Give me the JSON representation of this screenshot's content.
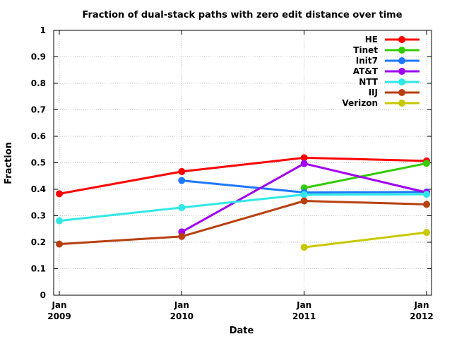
{
  "chart_data": {
    "type": "line",
    "title": "Fraction of dual-stack paths with zero edit distance over time",
    "xlabel": "Date",
    "ylabel": "Fraction",
    "x_ticks": [
      {
        "line1": "Jan",
        "line2": "2009",
        "x": "2009-01"
      },
      {
        "line1": "Jan",
        "line2": "2010",
        "x": "2010-01"
      },
      {
        "line1": "Jan",
        "line2": "2011",
        "x": "2011-01"
      },
      {
        "line1": "Jan",
        "line2": "2012",
        "x": "2012-01"
      }
    ],
    "xlim": [
      "2009-01",
      "2012-01"
    ],
    "ylim": [
      0,
      1
    ],
    "y_ticks": [
      "0",
      "0.1",
      "0.2",
      "0.3",
      "0.4",
      "0.5",
      "0.6",
      "0.7",
      "0.8",
      "0.9",
      "1"
    ],
    "grid": true,
    "legend_position": "top-right",
    "series": [
      {
        "name": "HE",
        "color": "#ff0000",
        "points": [
          {
            "x": "2009-01",
            "y": 0.383
          },
          {
            "x": "2010-01",
            "y": 0.467
          },
          {
            "x": "2011-01",
            "y": 0.519
          },
          {
            "x": "2012-01",
            "y": 0.507
          }
        ]
      },
      {
        "name": "Tinet",
        "color": "#33cc00",
        "points": [
          {
            "x": "2011-01",
            "y": 0.405
          },
          {
            "x": "2012-01",
            "y": 0.498
          }
        ]
      },
      {
        "name": "Init7",
        "color": "#1e78ff",
        "points": [
          {
            "x": "2010-01",
            "y": 0.433
          },
          {
            "x": "2011-01",
            "y": 0.388
          },
          {
            "x": "2012-01",
            "y": 0.39
          }
        ]
      },
      {
        "name": "AT&T",
        "color": "#a000f0",
        "points": [
          {
            "x": "2010-01",
            "y": 0.239
          },
          {
            "x": "2011-01",
            "y": 0.497
          },
          {
            "x": "2012-01",
            "y": 0.388
          }
        ]
      },
      {
        "name": "NTT",
        "color": "#30e8e8",
        "points": [
          {
            "x": "2009-01",
            "y": 0.281
          },
          {
            "x": "2010-01",
            "y": 0.331
          },
          {
            "x": "2011-01",
            "y": 0.38
          },
          {
            "x": "2012-01",
            "y": 0.381
          }
        ]
      },
      {
        "name": "IIJ",
        "color": "#b84010",
        "points": [
          {
            "x": "2009-01",
            "y": 0.193
          },
          {
            "x": "2010-01",
            "y": 0.222
          },
          {
            "x": "2011-01",
            "y": 0.356
          },
          {
            "x": "2012-01",
            "y": 0.343
          }
        ]
      },
      {
        "name": "Verizon",
        "color": "#c8c800",
        "points": [
          {
            "x": "2011-01",
            "y": 0.181
          },
          {
            "x": "2012-01",
            "y": 0.237
          }
        ]
      }
    ]
  }
}
